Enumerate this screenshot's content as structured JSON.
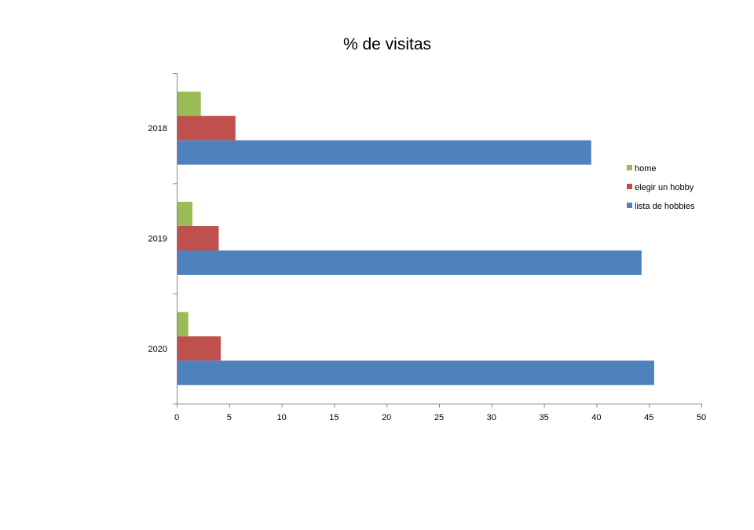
{
  "chart_data": {
    "type": "bar",
    "orientation": "horizontal",
    "title": "% de visitas",
    "categories": [
      "2018",
      "2019",
      "2020"
    ],
    "series": [
      {
        "name": "home",
        "color": "#9BBB59",
        "values": [
          2.3,
          1.5,
          1.1
        ]
      },
      {
        "name": "elegir un hobby",
        "color": "#C0504D",
        "values": [
          5.6,
          4.0,
          4.2
        ]
      },
      {
        "name": "lista de hobbies",
        "color": "#4F81BD",
        "values": [
          39.5,
          44.3,
          45.5
        ]
      }
    ],
    "xlim": [
      0,
      50
    ],
    "xticks": [
      "0",
      "5",
      "10",
      "15",
      "20",
      "25",
      "30",
      "35",
      "40",
      "45",
      "50"
    ],
    "grid": false,
    "legend_position": "right"
  }
}
